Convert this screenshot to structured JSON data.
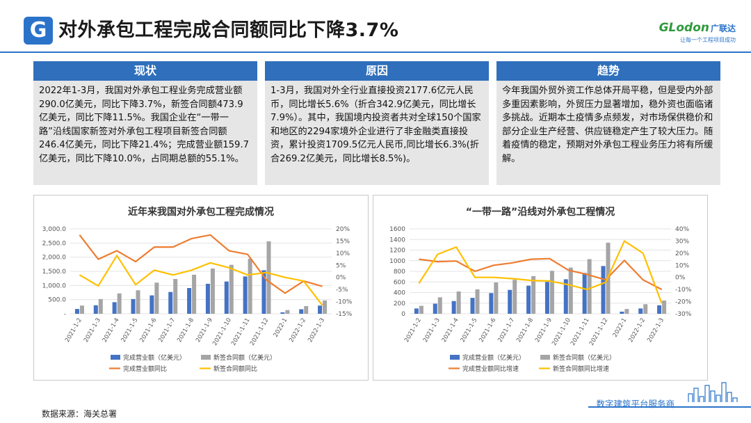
{
  "header": {
    "logo_letter": "G",
    "title": "对外承包工程完成合同额同比下降3.7%",
    "brand_en": "GLodon",
    "brand_cn": "广联达",
    "brand_slogan": "让每一个工程项目成功"
  },
  "panels": [
    {
      "title": "现状",
      "body": "2022年1-3月，我国对外承包工程业务完成营业额290.0亿美元，同比下降3.7%，新签合同额473.9亿美元，同比下降11.5%。我国企业在“一带一路”沿线国家新签对外承包工程项目新签合同额246.4亿美元，同比下降21.4%；完成营业额159.7亿美元，同比下降10.0%，占同期总额的55.1%。"
    },
    {
      "title": "原因",
      "body": "1-3月，我国对外全行业直接投资2177.6亿元人民币，同比增长5.6%（折合342.9亿美元，同比增长7.9%）。其中，我国境内投资者共对全球150个国家和地区的2294家境外企业进行了非金融类直接投资，累计投资1709.5亿元人民币,同比增长6.3%(折合269.2亿美元，同比增长8.5%)。"
    },
    {
      "title": "趋势",
      "body": "今年我国外贸外资工作总体开局平稳，但是受内外部多重因素影响，外贸压力显著增加，稳外资也面临诸多挑战。近期本土疫情多点频发，对市场保供稳价和部分企业生产经营、供应链稳定产生了较大压力。随着疫情的稳定，预期对外承包工程业务压力将有所缓解。"
    }
  ],
  "chart_data": [
    {
      "type": "bar",
      "title": "近年来我国对外承包工程完成情况",
      "categories": [
        "2021-1-2",
        "2021-1-3",
        "2021-1-4",
        "2021-1-5",
        "2021-1-6",
        "2021-1-7",
        "2021-1-8",
        "2021-1-9",
        "2021-1-10",
        "2021-1-11",
        "2021-1-12",
        "2022-1",
        "2022-1-2",
        "2022-1-3"
      ],
      "series": [
        {
          "name": "完成营业额（亿美元）",
          "type": "bar",
          "axis": "left",
          "color": "#4472c4",
          "values": [
            170,
            300,
            410,
            520,
            650,
            770,
            910,
            1060,
            1140,
            1320,
            1540,
            50,
            160,
            290
          ]
        },
        {
          "name": "新签合同额（亿美元）",
          "type": "bar",
          "axis": "left",
          "color": "#a5a5a5",
          "values": [
            290,
            520,
            720,
            830,
            1100,
            1230,
            1380,
            1600,
            1730,
            1950,
            2560,
            130,
            270,
            470
          ]
        },
        {
          "name": "完成营业额同比",
          "type": "line",
          "axis": "right",
          "color": "#ed7d31",
          "values": [
            17.5,
            7.5,
            11,
            6.5,
            12.5,
            12.5,
            16,
            17.5,
            11,
            9.5,
            -1,
            -6.5,
            -1.5,
            -3.7
          ]
        },
        {
          "name": "新签合同额同比",
          "type": "line",
          "axis": "right",
          "color": "#ffc000",
          "values": [
            1,
            -3.5,
            9,
            -3,
            3,
            1,
            3,
            6,
            4,
            1,
            2,
            0,
            -1.5,
            -11.5
          ]
        }
      ],
      "y_left": {
        "min": 0,
        "max": 3000,
        "ticks": [
          "-",
          "500.0",
          "1,000.0",
          "1,500.0",
          "2,000.0",
          "2,500.0",
          "3,000.0"
        ]
      },
      "y_right": {
        "min": -15,
        "max": 20,
        "ticks": [
          "-15%",
          "-10%",
          "-5%",
          "0%",
          "5%",
          "10%",
          "15%",
          "20%"
        ]
      },
      "legend": "bottom"
    },
    {
      "type": "bar",
      "title": "“一带一路”沿线对外承包工程情况",
      "categories": [
        "2021-1-2",
        "2021-1-3",
        "2021-1-4",
        "2021-1-5",
        "2021-1-6",
        "2021-1-7",
        "2021-1-8",
        "2021-1-9",
        "2021-1-10",
        "2021-1-11",
        "2021-1-12",
        "2022-1",
        "2022-1-2",
        "2022-1-3"
      ],
      "series": [
        {
          "name": "完成营业额（亿美元）",
          "type": "bar",
          "axis": "left",
          "color": "#4472c4",
          "values": [
            100,
            190,
            240,
            300,
            390,
            450,
            530,
            600,
            650,
            770,
            900,
            40,
            100,
            160
          ]
        },
        {
          "name": "新签合同额（亿美元）",
          "type": "bar",
          "axis": "left",
          "color": "#a5a5a5",
          "values": [
            150,
            310,
            420,
            460,
            590,
            640,
            710,
            810,
            870,
            1030,
            1340,
            90,
            180,
            250
          ]
        },
        {
          "name": "完成营业额同比增速",
          "type": "line",
          "axis": "right",
          "color": "#ed7d31",
          "values": [
            15,
            13,
            13.5,
            5,
            10,
            12,
            15,
            15.5,
            6,
            2.5,
            -2,
            14,
            -2,
            -10
          ]
        },
        {
          "name": "新签合同额同比增速",
          "type": "line",
          "axis": "right",
          "color": "#ffc000",
          "values": [
            -5,
            19,
            25,
            0,
            0,
            -1,
            -2.5,
            -3,
            -6,
            -10,
            -4,
            30,
            20,
            -21.4
          ]
        }
      ],
      "y_left": {
        "min": 0,
        "max": 1600,
        "ticks": [
          "0",
          "200",
          "400",
          "600",
          "800",
          "1000",
          "1200",
          "1400",
          "1600"
        ]
      },
      "y_right": {
        "min": -30,
        "max": 40,
        "ticks": [
          "-30%",
          "-20%",
          "-10%",
          "0%",
          "10%",
          "20%",
          "30%",
          "40%"
        ]
      },
      "legend": "bottom"
    }
  ],
  "footer": {
    "source": "数据来源：海关总署",
    "platform": "数字建筑平台服务商"
  }
}
